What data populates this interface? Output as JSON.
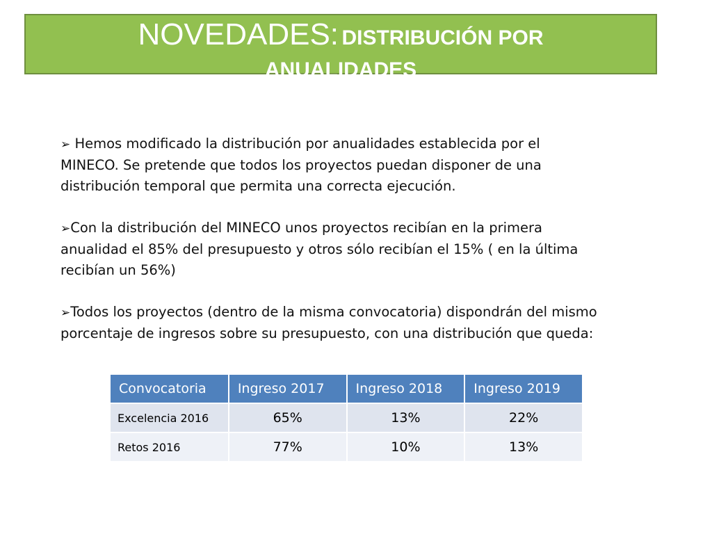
{
  "title": {
    "main": "NOVEDADES:",
    "sub_line1": "DISTRIBUCIÓN POR",
    "sub_line2": "ANUALIDADES"
  },
  "bullet_icon": "arrow-bullet-icon",
  "paragraphs": [
    {
      "lines": [
        " Hemos modificado la distribución por anualidades  establecida por el",
        "MINECO. Se pretende que todos los proyectos puedan disponer de una",
        "distribución temporal que permita una correcta ejecución."
      ]
    },
    {
      "lines": [
        "Con la distribución del MINECO unos proyectos recibían en la primera",
        "anualidad el 85% del presupuesto y otros sólo recibían el 15% ( en la última",
        "recibían un 56%)"
      ]
    },
    {
      "lines": [
        "Todos los proyectos (dentro de la misma convocatoria) dispondrán del mismo",
        "porcentaje de ingresos sobre su presupuesto, con una distribución que queda:"
      ]
    }
  ],
  "table": {
    "headers": [
      "Convocatoria",
      "Ingreso 2017",
      "Ingreso 2018",
      "Ingreso 2019"
    ],
    "rows": [
      [
        "Excelencia 2016",
        "65%",
        "13%",
        "22%"
      ],
      [
        "Retos 2016",
        "77%",
        "10%",
        "13%"
      ]
    ]
  },
  "colors": {
    "title_bg": "#92c050",
    "table_header": "#4f81bd"
  }
}
